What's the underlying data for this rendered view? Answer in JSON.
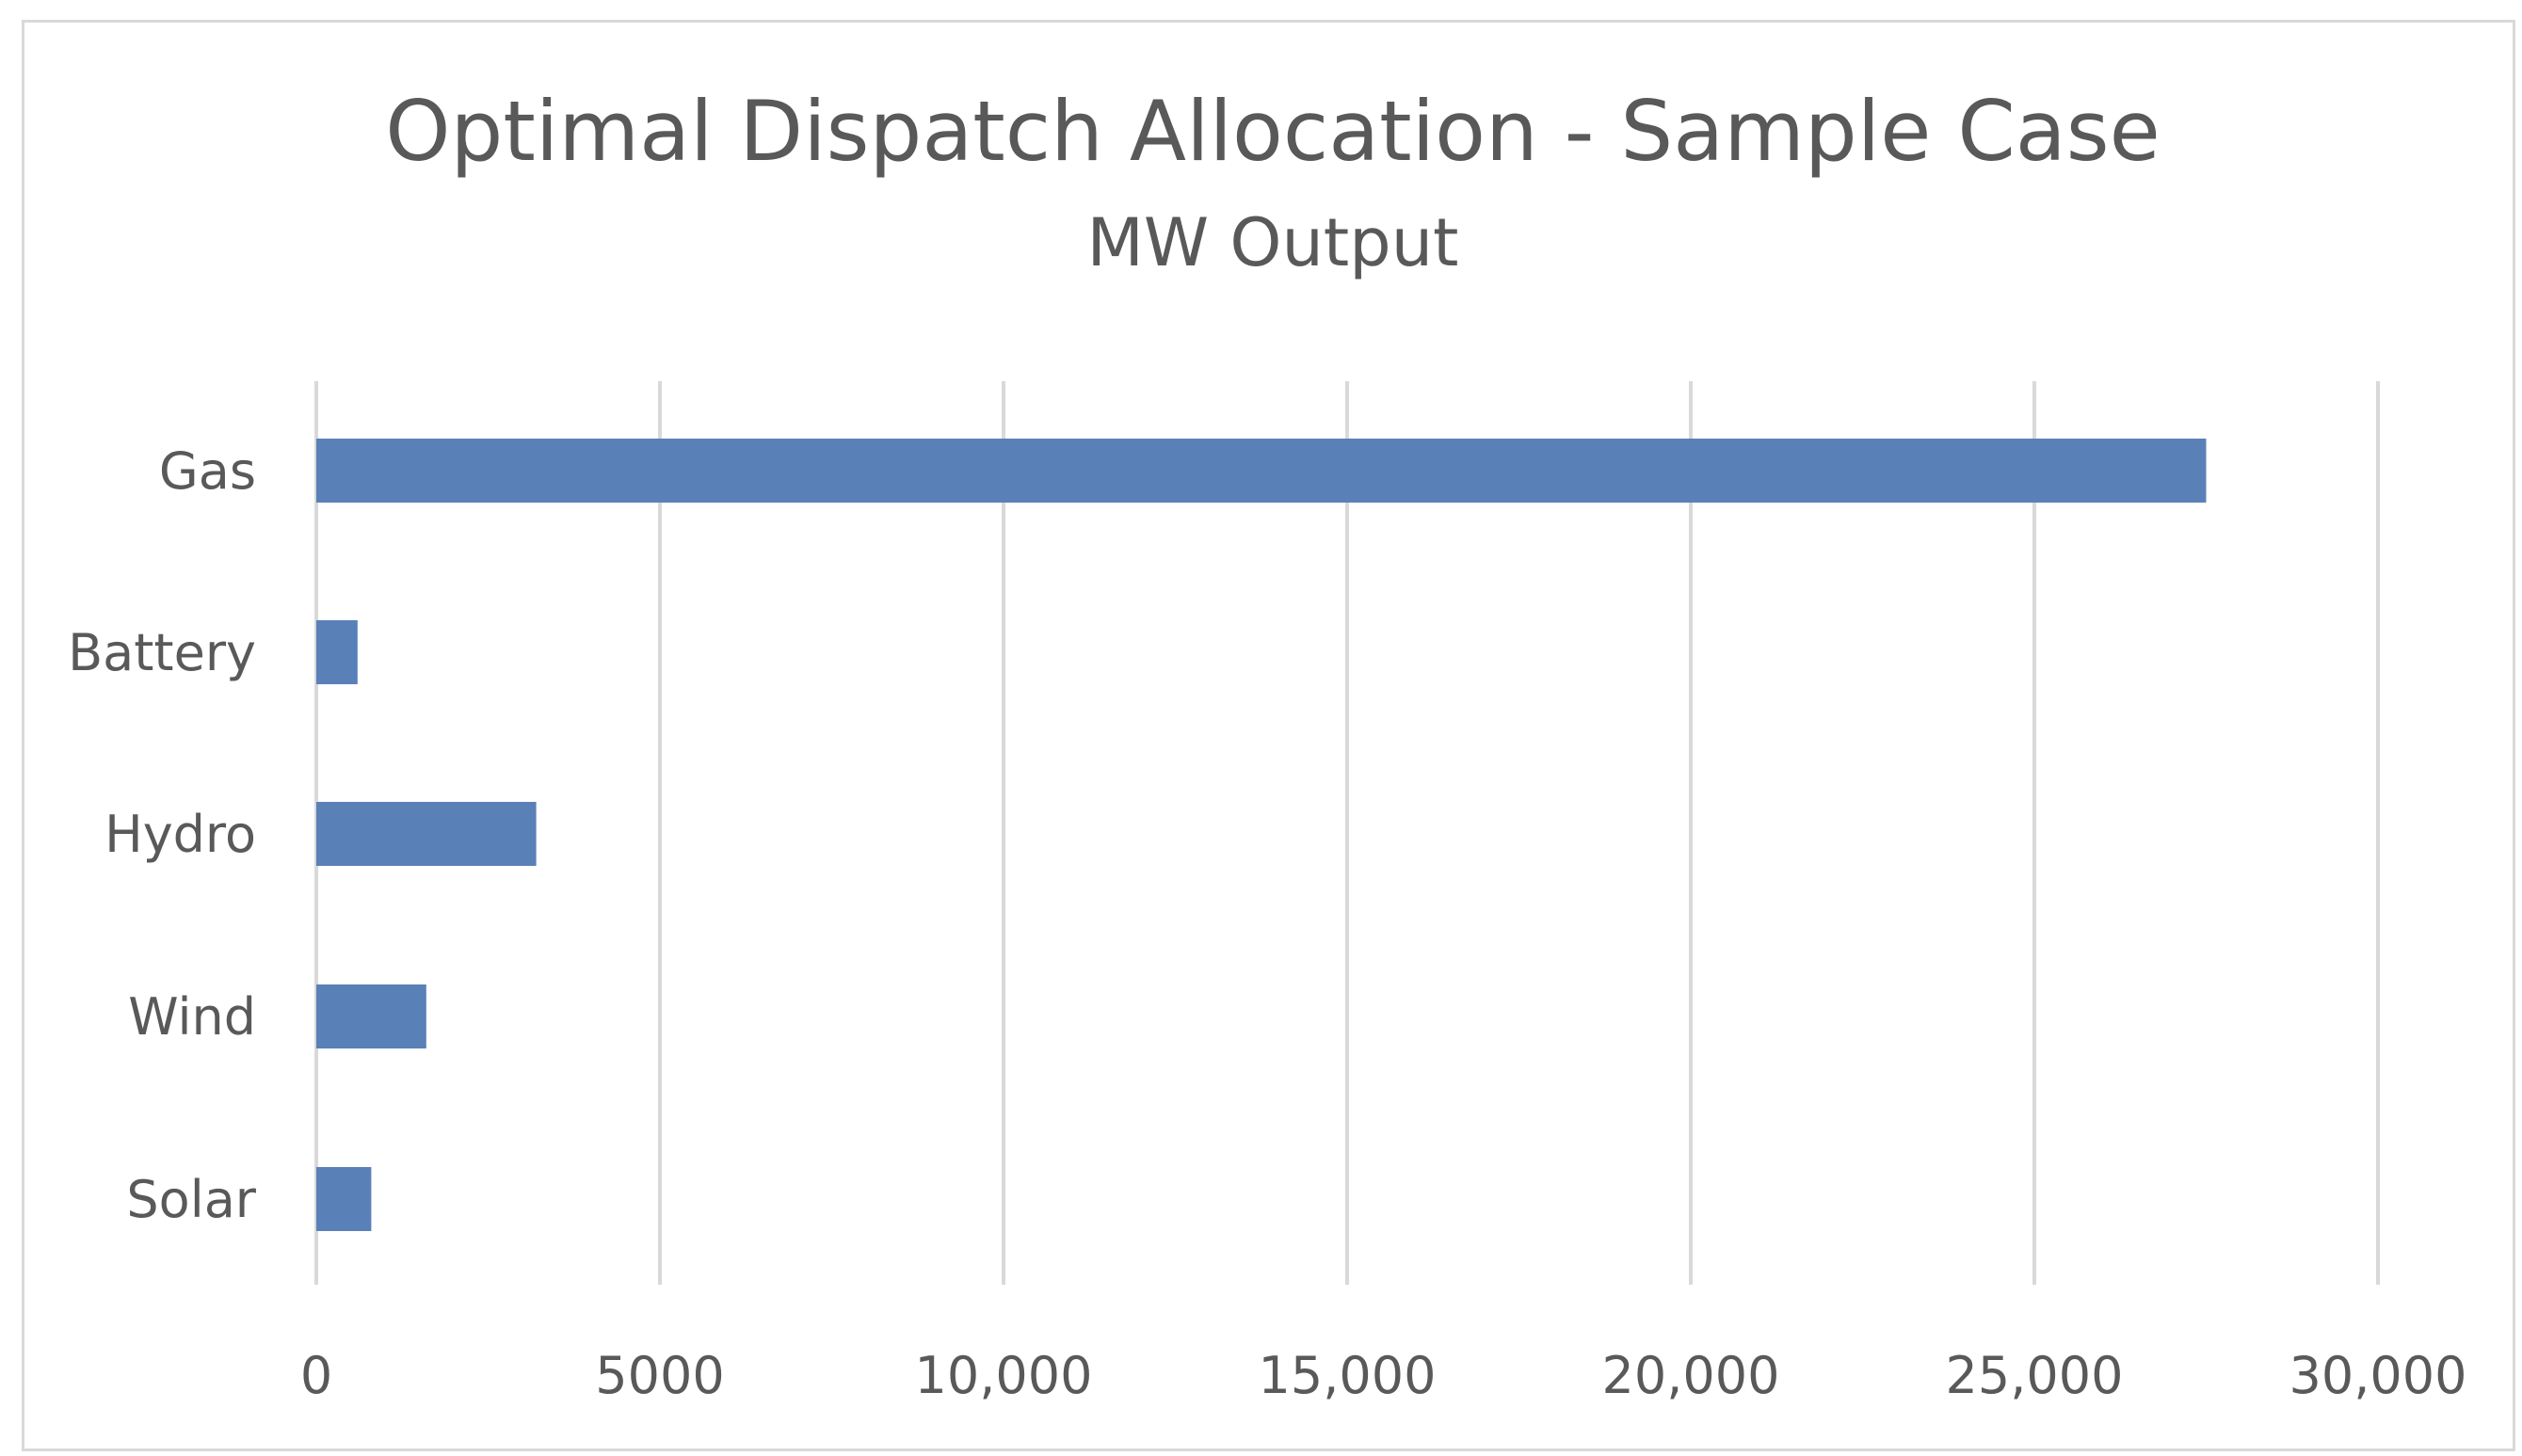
{
  "chart_data": {
    "type": "bar",
    "orientation": "horizontal",
    "title": "Optimal Dispatch Allocation - Sample Case",
    "subtitle": "MW Output",
    "categories": [
      "Gas",
      "Battery",
      "Hydro",
      "Wind",
      "Solar"
    ],
    "values": [
      27500,
      600,
      3200,
      1600,
      800
    ],
    "xlim": [
      0,
      30000
    ],
    "xticks": [
      0,
      5000,
      10000,
      15000,
      20000,
      25000,
      30000
    ],
    "xtick_labels": [
      "0",
      "5000",
      "10,000",
      "15,000",
      "20,000",
      "25,000",
      "30,000"
    ],
    "xlabel": "",
    "ylabel": "",
    "grid": "vertical",
    "legend": "none",
    "bar_color": "#5a80b8",
    "grid_color": "#d9d9d9",
    "text_color": "#595959"
  }
}
